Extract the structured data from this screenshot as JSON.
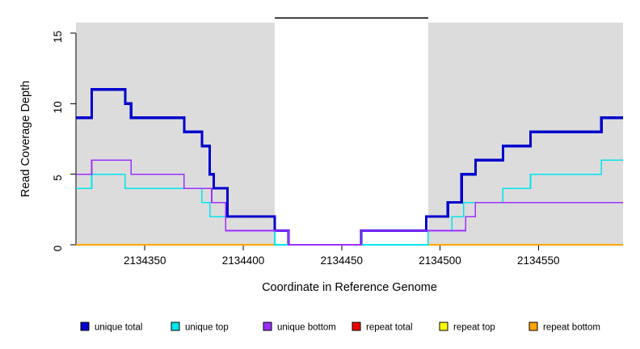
{
  "chart_data": {
    "type": "line",
    "subtype": "step-coverage",
    "title": "",
    "xlabel": "Coordinate in Reference Genome",
    "ylabel": "Read Coverage Depth",
    "xlim": [
      2134315,
      2134593
    ],
    "ylim": [
      0,
      16
    ],
    "x_ticks": [
      2134350,
      2134400,
      2134450,
      2134500,
      2134550
    ],
    "y_ticks": [
      0,
      5,
      10,
      15
    ],
    "grid": false,
    "background": "#ffffff",
    "band_color": "#dcdcdc",
    "shaded_regions": [
      {
        "x1": 2134315,
        "x2": 2134416
      },
      {
        "x1": 2134494,
        "x2": 2134593
      }
    ],
    "top_bracket": {
      "x1": 2134416,
      "x2": 2134494,
      "color": "#000000"
    },
    "series": [
      {
        "name": "unique total",
        "color": "#0000CD",
        "line_width": 3.2,
        "z": 4,
        "segments": [
          {
            "points": [
              [
                2134315,
                9
              ],
              [
                2134323,
                11
              ],
              [
                2134340,
                10
              ],
              [
                2134343,
                9
              ],
              [
                2134370,
                8
              ],
              [
                2134379,
                7
              ],
              [
                2134383,
                5
              ],
              [
                2134385,
                4
              ],
              [
                2134392,
                2
              ],
              [
                2134416,
                1
              ],
              [
                2134423,
                0
              ]
            ],
            "end": 2134423
          },
          {
            "points": [
              [
                2134460,
                0
              ],
              [
                2134460,
                1
              ],
              [
                2134493,
                2
              ],
              [
                2134504,
                3
              ],
              [
                2134511,
                5
              ],
              [
                2134518,
                6
              ],
              [
                2134532,
                7
              ],
              [
                2134546,
                8
              ],
              [
                2134582,
                9
              ]
            ],
            "end": 2134593
          }
        ]
      },
      {
        "name": "unique top",
        "color": "#00E5EE",
        "line_width": 1.6,
        "z": 5,
        "segments": [
          {
            "points": [
              [
                2134315,
                4
              ],
              [
                2134323,
                5
              ],
              [
                2134340,
                4
              ],
              [
                2134379,
                3
              ],
              [
                2134383,
                2
              ],
              [
                2134391,
                1
              ],
              [
                2134416,
                0
              ],
              [
                2134494,
                1
              ],
              [
                2134506,
                2
              ],
              [
                2134512,
                3
              ],
              [
                2134532,
                4
              ],
              [
                2134546,
                5
              ],
              [
                2134582,
                6
              ]
            ],
            "end": 2134593
          }
        ]
      },
      {
        "name": "unique bottom",
        "color": "#9B30FF",
        "line_width": 1.6,
        "z": 6,
        "segments": [
          {
            "points": [
              [
                2134315,
                5
              ],
              [
                2134323,
                6
              ],
              [
                2134343,
                5
              ],
              [
                2134370,
                4
              ],
              [
                2134384,
                3
              ],
              [
                2134391,
                1
              ],
              [
                2134423,
                0
              ],
              [
                2134460,
                1
              ],
              [
                2134513,
                2
              ],
              [
                2134518,
                3
              ]
            ],
            "end": 2134593
          }
        ]
      },
      {
        "name": "repeat total",
        "color": "#EE0000",
        "line_width": 1.6,
        "z": 1,
        "segments": [
          {
            "points": [
              [
                2134315,
                0
              ]
            ],
            "end": 2134593
          }
        ]
      },
      {
        "name": "repeat top",
        "color": "#FFFF00",
        "line_width": 1.6,
        "z": 2,
        "segments": [
          {
            "points": [
              [
                2134315,
                0
              ]
            ],
            "end": 2134593
          }
        ]
      },
      {
        "name": "repeat bottom",
        "color": "#FFA500",
        "line_width": 1.6,
        "z": 3,
        "segments": [
          {
            "points": [
              [
                2134315,
                0
              ]
            ],
            "end": 2134593
          }
        ]
      }
    ],
    "legend": {
      "position": "bottom",
      "entries": [
        {
          "label": "unique total",
          "color": "#0000CD"
        },
        {
          "label": "unique top",
          "color": "#00E5EE"
        },
        {
          "label": "unique bottom",
          "color": "#9B30FF"
        },
        {
          "label": "repeat total",
          "color": "#EE0000"
        },
        {
          "label": "repeat top",
          "color": "#FFFF00"
        },
        {
          "label": "repeat bottom",
          "color": "#FFA500"
        }
      ]
    }
  }
}
